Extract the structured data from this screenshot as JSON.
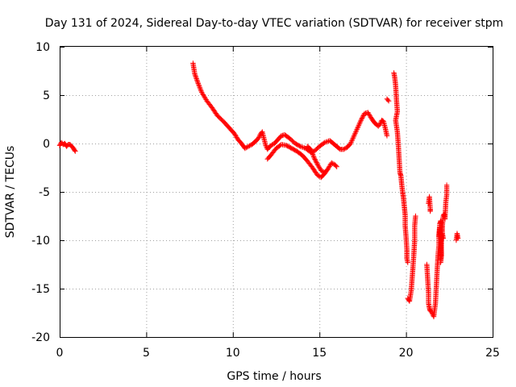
{
  "chart_data": {
    "type": "scatter",
    "title": "Day 131 of 2024, Sidereal Day-to-day VTEC variation (SDTVAR) for receiver stpm",
    "xlabel": "GPS time / hours",
    "ylabel": "SDTVAR / TECUs",
    "xlim": [
      0,
      25
    ],
    "ylim": [
      -20,
      10
    ],
    "xticks": [
      0,
      5,
      10,
      15,
      20,
      25
    ],
    "yticks": [
      10,
      5,
      0,
      -5,
      -10,
      -15,
      -20
    ],
    "grid": true,
    "marker": "+",
    "color": "#ff0000",
    "series": [
      {
        "name": "SDTVAR",
        "polylines": [
          [
            [
              0.0,
              -0.2
            ],
            [
              0.1,
              0.1
            ],
            [
              0.2,
              -0.1
            ],
            [
              0.3,
              0.0
            ],
            [
              0.4,
              -0.3
            ],
            [
              0.5,
              -0.1
            ],
            [
              0.6,
              -0.1
            ],
            [
              0.7,
              -0.3
            ],
            [
              0.8,
              -0.5
            ],
            [
              0.9,
              -0.8
            ]
          ],
          [
            [
              7.7,
              8.3
            ],
            [
              7.8,
              7.2
            ],
            [
              8.0,
              6.2
            ],
            [
              8.2,
              5.3
            ],
            [
              8.5,
              4.4
            ],
            [
              8.8,
              3.7
            ],
            [
              9.1,
              2.9
            ],
            [
              9.5,
              2.2
            ],
            [
              9.8,
              1.6
            ],
            [
              10.1,
              1.0
            ],
            [
              10.3,
              0.4
            ],
            [
              10.5,
              0.0
            ],
            [
              10.7,
              -0.5
            ],
            [
              10.9,
              -0.3
            ],
            [
              11.1,
              -0.1
            ],
            [
              11.3,
              0.2
            ],
            [
              11.5,
              0.6
            ],
            [
              11.6,
              1.0
            ],
            [
              11.7,
              1.2
            ],
            [
              11.8,
              0.5
            ],
            [
              11.9,
              -0.2
            ],
            [
              12.0,
              -0.6
            ],
            [
              12.2,
              -0.2
            ],
            [
              12.4,
              0.0
            ],
            [
              12.6,
              0.4
            ],
            [
              12.8,
              0.8
            ],
            [
              13.0,
              0.9
            ],
            [
              13.3,
              0.5
            ],
            [
              13.6,
              0.0
            ],
            [
              13.9,
              -0.3
            ],
            [
              14.2,
              -0.5
            ],
            [
              14.5,
              -0.9
            ],
            [
              14.7,
              -0.8
            ],
            [
              15.0,
              -0.3
            ],
            [
              15.3,
              0.1
            ],
            [
              15.6,
              0.3
            ],
            [
              15.8,
              0.0
            ],
            [
              16.0,
              -0.3
            ],
            [
              16.2,
              -0.6
            ],
            [
              16.4,
              -0.6
            ],
            [
              16.6,
              -0.4
            ],
            [
              16.8,
              0.0
            ],
            [
              17.0,
              0.8
            ],
            [
              17.2,
              1.6
            ],
            [
              17.4,
              2.4
            ],
            [
              17.6,
              3.1
            ],
            [
              17.8,
              3.2
            ],
            [
              18.0,
              2.6
            ],
            [
              18.2,
              2.1
            ],
            [
              18.4,
              1.8
            ],
            [
              18.5,
              2.0
            ],
            [
              18.6,
              2.4
            ],
            [
              18.7,
              2.3
            ],
            [
              18.8,
              1.6
            ],
            [
              18.9,
              0.8
            ]
          ],
          [
            [
              12.0,
              -1.6
            ],
            [
              12.2,
              -1.2
            ],
            [
              12.5,
              -0.5
            ],
            [
              12.8,
              -0.1
            ],
            [
              13.1,
              -0.2
            ],
            [
              13.4,
              -0.5
            ],
            [
              13.7,
              -0.8
            ],
            [
              14.0,
              -1.2
            ],
            [
              14.3,
              -1.8
            ],
            [
              14.6,
              -2.5
            ],
            [
              14.9,
              -3.3
            ],
            [
              15.1,
              -3.5
            ],
            [
              15.3,
              -3.1
            ],
            [
              15.5,
              -2.6
            ],
            [
              15.7,
              -2.0
            ],
            [
              15.9,
              -2.2
            ],
            [
              16.0,
              -2.4
            ]
          ],
          [
            [
              14.3,
              -0.3
            ],
            [
              14.5,
              -0.6
            ],
            [
              14.7,
              -1.5
            ],
            [
              14.9,
              -2.2
            ],
            [
              15.1,
              -2.8
            ],
            [
              15.3,
              -3.0
            ]
          ],
          [
            [
              18.9,
              4.6
            ],
            [
              19.0,
              4.4
            ]
          ],
          [
            [
              19.3,
              7.3
            ],
            [
              19.35,
              6.8
            ],
            [
              19.4,
              6.0
            ],
            [
              19.45,
              4.5
            ],
            [
              19.5,
              3.3
            ],
            [
              19.4,
              2.4
            ],
            [
              19.5,
              1.2
            ],
            [
              19.55,
              0.0
            ],
            [
              19.6,
              -1.5
            ],
            [
              19.65,
              -3.0
            ],
            [
              19.7,
              -3.3
            ],
            [
              19.75,
              -4.2
            ],
            [
              19.8,
              -5.0
            ],
            [
              19.85,
              -5.6
            ],
            [
              19.9,
              -6.5
            ],
            [
              19.95,
              -7.4
            ],
            [
              19.95,
              -8.5
            ],
            [
              20.0,
              -9.6
            ],
            [
              20.05,
              -11.0
            ],
            [
              20.05,
              -11.9
            ],
            [
              20.1,
              -12.3
            ]
          ],
          [
            [
              20.1,
              -16.0
            ],
            [
              20.2,
              -16.3
            ],
            [
              20.3,
              -15.2
            ],
            [
              20.35,
              -14.0
            ],
            [
              20.4,
              -12.8
            ],
            [
              20.45,
              -11.5
            ],
            [
              20.5,
              -10.0
            ],
            [
              20.5,
              -8.5
            ],
            [
              20.55,
              -7.5
            ]
          ],
          [
            [
              21.2,
              -12.5
            ],
            [
              21.25,
              -14.0
            ],
            [
              21.3,
              -15.5
            ],
            [
              21.3,
              -16.5
            ],
            [
              21.35,
              -17.0
            ],
            [
              21.4,
              -17.3
            ],
            [
              21.5,
              -17.5
            ],
            [
              21.6,
              -17.9
            ],
            [
              21.7,
              -16.5
            ],
            [
              21.75,
              -14.8
            ],
            [
              21.8,
              -13.0
            ],
            [
              21.85,
              -11.5
            ],
            [
              21.9,
              -10.5
            ],
            [
              21.9,
              -9.5
            ],
            [
              21.95,
              -8.7
            ],
            [
              22.0,
              -9.8
            ],
            [
              22.05,
              -11.5
            ],
            [
              22.0,
              -12.3
            ],
            [
              22.05,
              -10.0
            ],
            [
              22.1,
              -8.5
            ],
            [
              22.15,
              -7.5
            ],
            [
              22.2,
              -7.3
            ],
            [
              22.25,
              -7.8
            ],
            [
              22.3,
              -6.0
            ],
            [
              22.35,
              -5.3
            ],
            [
              22.35,
              -4.3
            ]
          ],
          [
            [
              21.3,
              -6.2
            ],
            [
              21.35,
              -5.5
            ],
            [
              21.4,
              -6.8
            ],
            [
              21.4,
              -7.0
            ]
          ],
          [
            [
              21.9,
              -9.6
            ],
            [
              21.95,
              -8.3
            ],
            [
              22.0,
              -8.0
            ],
            [
              22.05,
              -8.2
            ],
            [
              22.1,
              -9.3
            ],
            [
              22.15,
              -9.8
            ]
          ],
          [
            [
              22.9,
              -10.0
            ],
            [
              22.95,
              -9.3
            ],
            [
              23.0,
              -9.8
            ]
          ]
        ]
      }
    ]
  }
}
